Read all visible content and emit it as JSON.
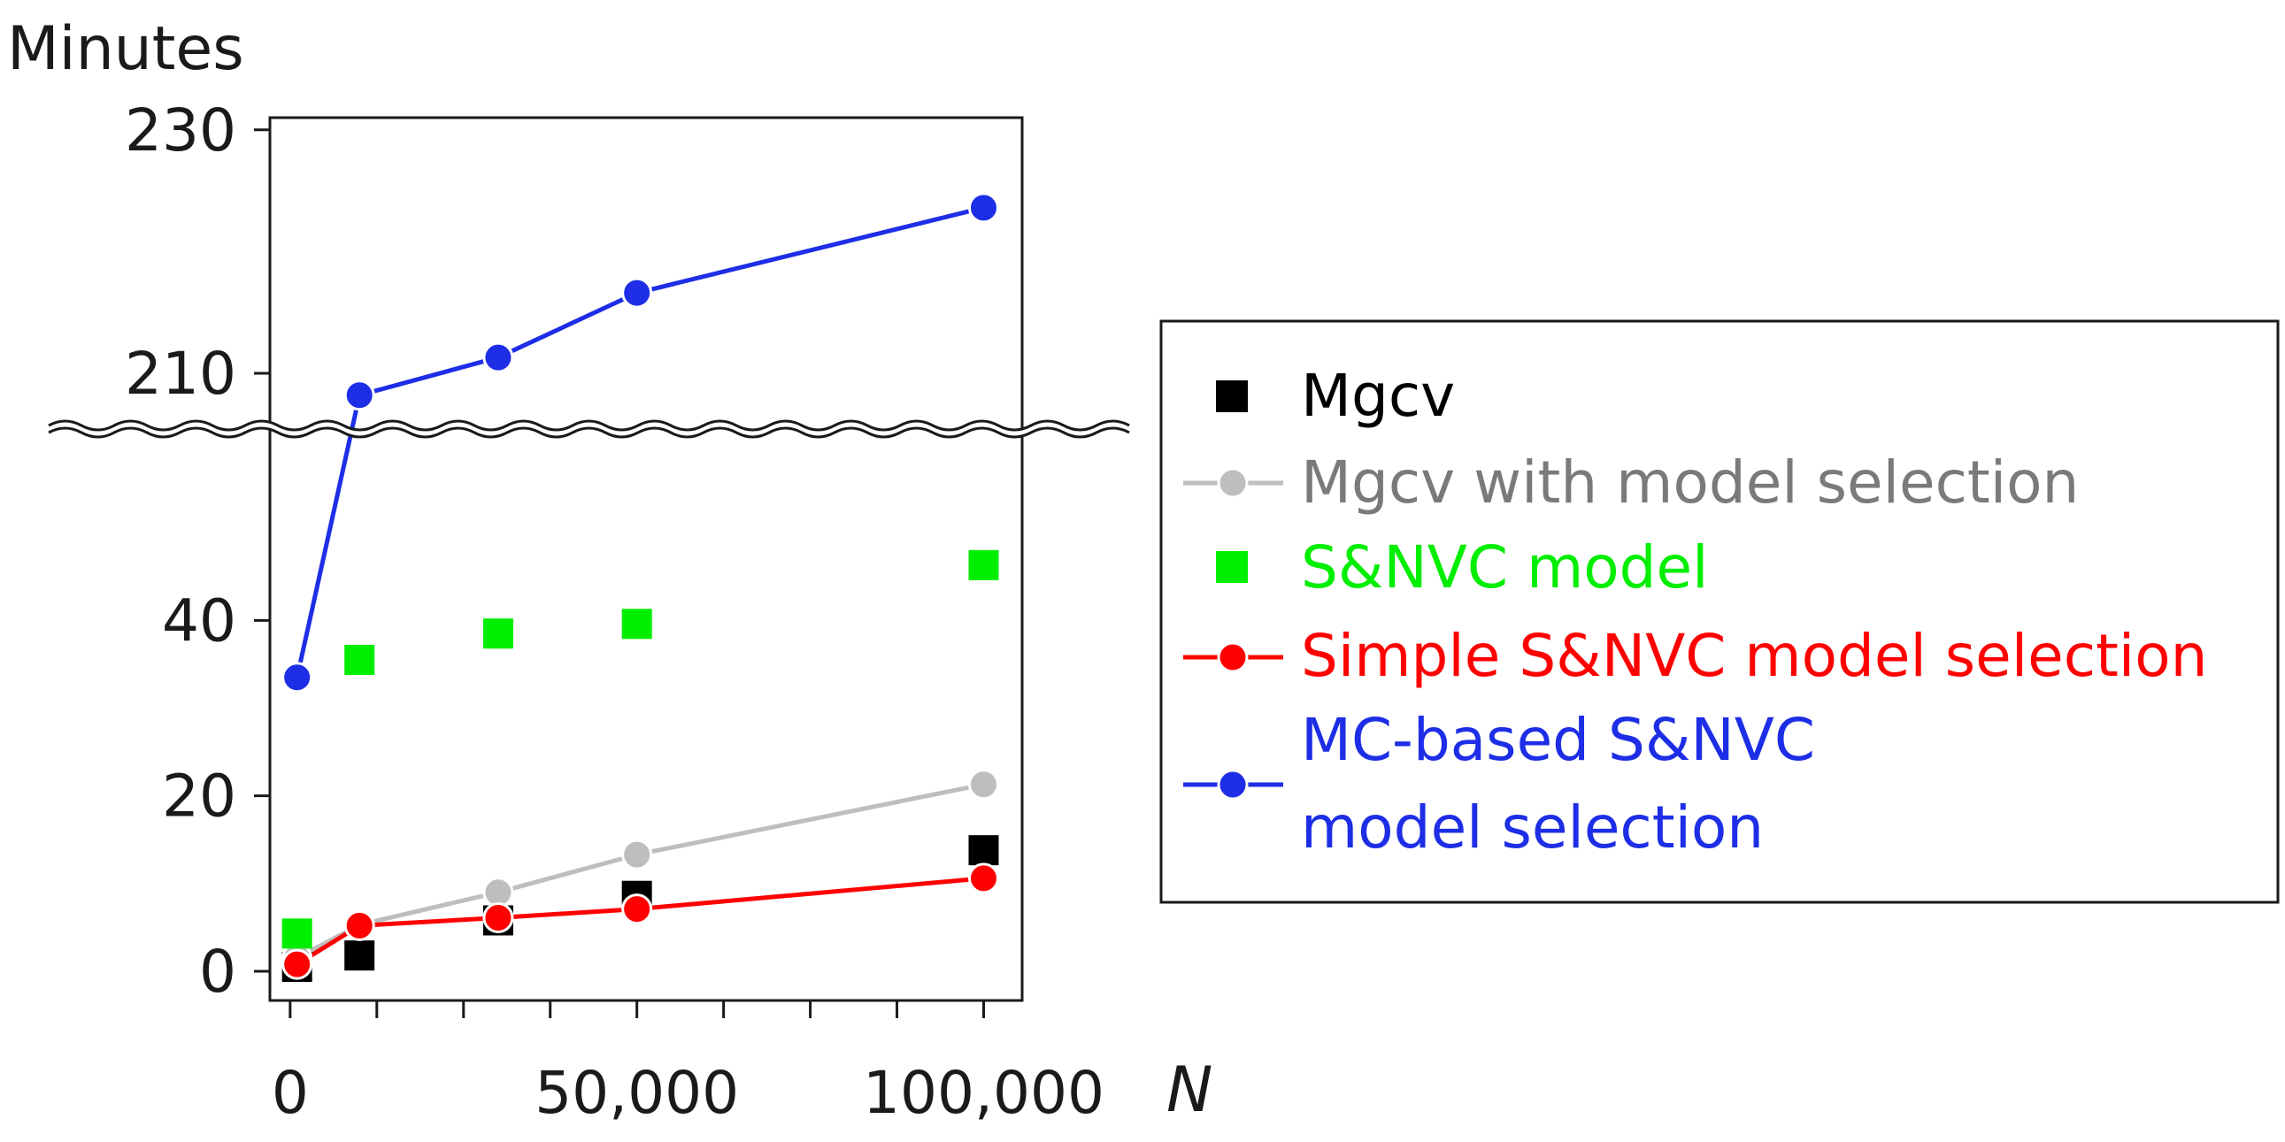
{
  "chart_data": {
    "type": "scatter",
    "title": "",
    "xlabel": "N",
    "ylabel": "Minutes",
    "xlim": [
      -1000,
      103000
    ],
    "ylim_lower": [
      0,
      48
    ],
    "ylim_upper": [
      206,
      231
    ],
    "x_ticks": [
      0,
      50000,
      100000
    ],
    "x_tick_labels": [
      "0",
      "50,000",
      "100,000"
    ],
    "y_ticks": [
      0,
      20,
      40,
      210,
      230
    ],
    "y_tick_labels": [
      "0",
      "20",
      "40",
      "210",
      "230"
    ],
    "axis_break_between": [
      48,
      206
    ],
    "grid": false,
    "legend_position": "right",
    "x": [
      1000,
      10000,
      30000,
      50000,
      100000
    ],
    "series": [
      {
        "name": "Mgcv",
        "marker": "square",
        "line": false,
        "color": "#000000",
        "values": [
          0.5,
          1.8,
          5.8,
          8.6,
          13.8
        ]
      },
      {
        "name": "Mgcv with model selection",
        "marker": "circle",
        "line": true,
        "color": "#bebebe",
        "values": [
          1.5,
          5.3,
          9.0,
          13.3,
          21.3
        ]
      },
      {
        "name": "S&NVC model",
        "marker": "square",
        "line": false,
        "color": "#00ee00",
        "values": [
          4.3,
          35.5,
          38.5,
          39.6,
          46.3
        ]
      },
      {
        "name": "Simple S&NVC model selection",
        "marker": "circle",
        "line": true,
        "color": "#ff0000",
        "values": [
          0.8,
          5.2,
          6.1,
          7.1,
          10.6
        ]
      },
      {
        "name": "MC-based S&NVC model selection",
        "legend_lines": [
          "MC-based S&NVC",
          "model selection"
        ],
        "marker": "circle",
        "line": true,
        "color": "#1d2ee6",
        "values": [
          33.5,
          208.2,
          211.3,
          216.6,
          223.6
        ]
      }
    ]
  }
}
